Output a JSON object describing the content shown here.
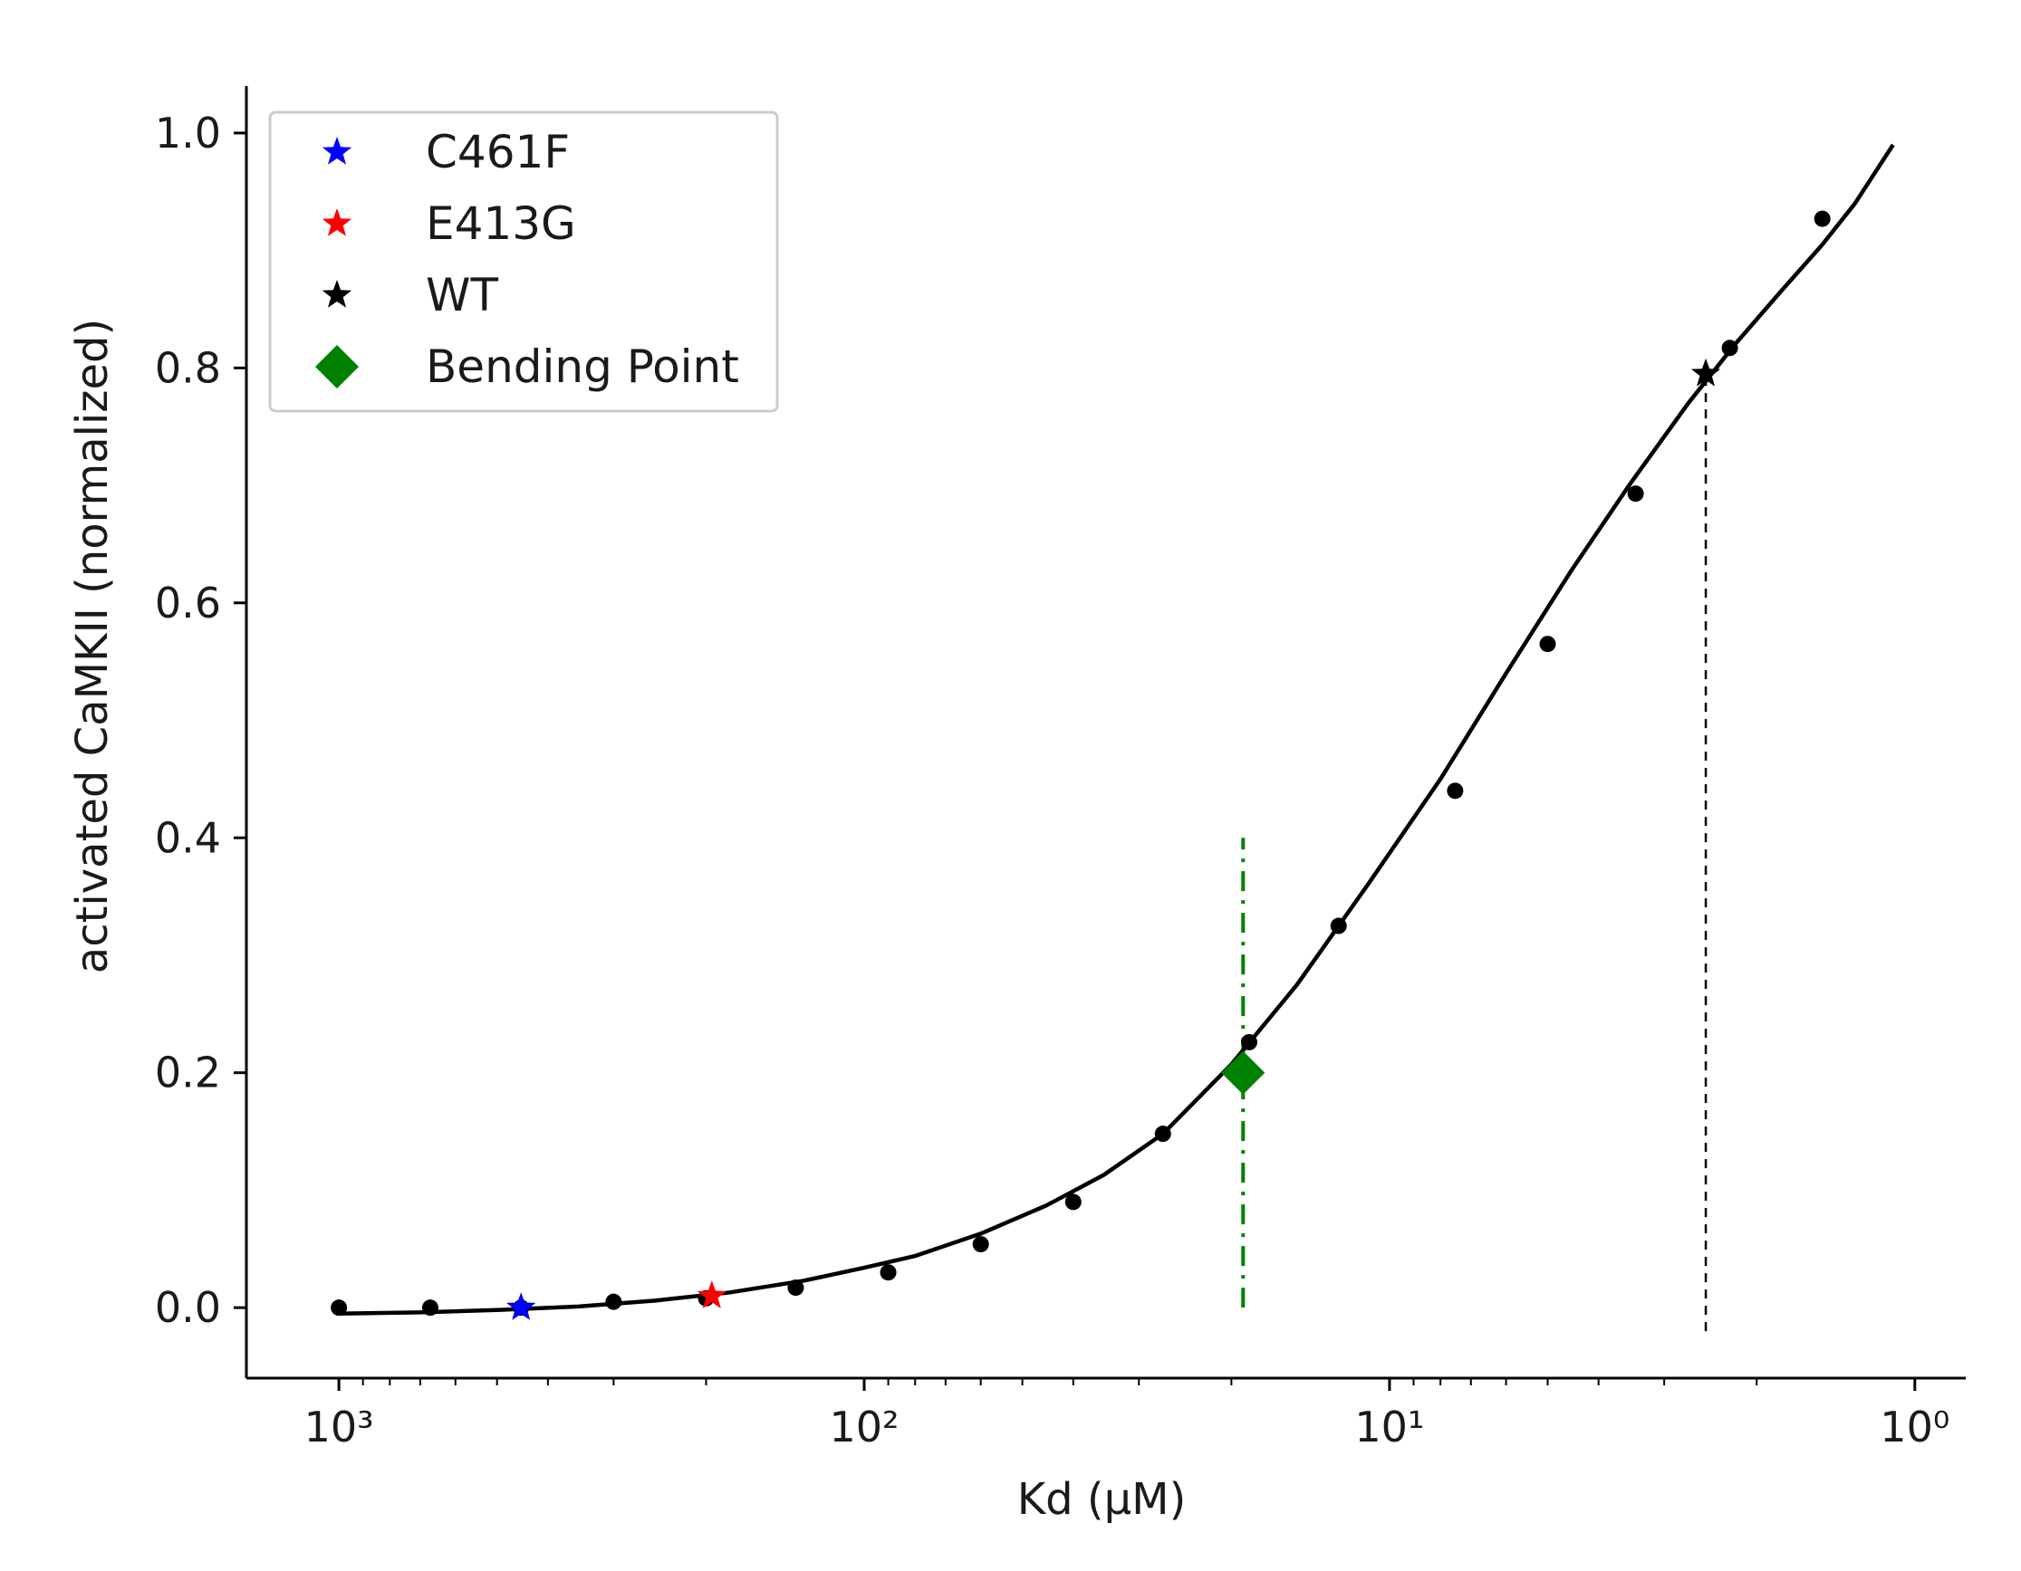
{
  "chart_data": {
    "type": "line",
    "xlabel": "Kd (μM)",
    "ylabel": "activated CaMKII (normalized)",
    "x_scale": "log",
    "x_reversed": true,
    "xlim": [
      1500,
      0.8
    ],
    "ylim": [
      -0.06,
      1.04
    ],
    "xticks": [
      {
        "value": 1000,
        "label": "10³"
      },
      {
        "value": 100,
        "label": "10²"
      },
      {
        "value": 10,
        "label": "10¹"
      },
      {
        "value": 1,
        "label": "10⁰"
      }
    ],
    "yticks": [
      {
        "value": 0.0,
        "label": "0.0"
      },
      {
        "value": 0.2,
        "label": "0.2"
      },
      {
        "value": 0.4,
        "label": "0.4"
      },
      {
        "value": 0.6,
        "label": "0.6"
      },
      {
        "value": 0.8,
        "label": "0.8"
      },
      {
        "value": 1.0,
        "label": "1.0"
      }
    ],
    "grid": false,
    "legend_position": "top-left",
    "curve": {
      "color": "#000000",
      "x": [
        1000,
        700,
        500,
        350,
        250,
        180,
        130,
        100,
        80,
        60,
        45,
        35,
        27,
        20,
        15,
        11,
        8,
        6,
        4.5,
        3.5,
        2.7,
        2.2,
        1.8,
        1.5,
        1.3,
        1.1
      ],
      "y": [
        -0.005,
        -0.004,
        -0.002,
        0.001,
        0.006,
        0.013,
        0.023,
        0.034,
        0.044,
        0.063,
        0.087,
        0.113,
        0.148,
        0.207,
        0.275,
        0.36,
        0.45,
        0.54,
        0.628,
        0.7,
        0.77,
        0.82,
        0.865,
        0.905,
        0.94,
        0.99
      ]
    },
    "points": {
      "color": "#000000",
      "x": [
        1000,
        670,
        450,
        300,
        200,
        135,
        90,
        60,
        40,
        27,
        18.5,
        12.5,
        7.5,
        5.0,
        3.4,
        2.25,
        1.5
      ],
      "y": [
        0.0,
        0.0,
        0.0,
        0.005,
        0.008,
        0.017,
        0.03,
        0.054,
        0.09,
        0.148,
        0.226,
        0.325,
        0.44,
        0.565,
        0.693,
        0.817,
        0.927
      ]
    },
    "markers": [
      {
        "name": "C461F",
        "marker": "star",
        "color": "#0000ff",
        "x": 450,
        "y": 0.0
      },
      {
        "name": "E413G",
        "marker": "star",
        "color": "#ff0000",
        "x": 195,
        "y": 0.01
      },
      {
        "name": "WT",
        "marker": "star",
        "color": "#000000",
        "x": 2.5,
        "y": 0.795
      },
      {
        "name": "Bending Point",
        "marker": "diamond",
        "color": "#008000",
        "x": 19,
        "y": 0.2
      }
    ],
    "vlines": [
      {
        "x": 19,
        "y0": 0.0,
        "y1": 0.4,
        "style": "dashdot",
        "color": "#008000"
      },
      {
        "x": 2.5,
        "y0": -0.02,
        "y1": 0.795,
        "style": "dashed",
        "color": "#000000"
      }
    ],
    "legend": [
      {
        "label": "C461F",
        "marker": "star",
        "color": "#0000ff"
      },
      {
        "label": "E413G",
        "marker": "star",
        "color": "#ff0000"
      },
      {
        "label": "WT",
        "marker": "star",
        "color": "#000000"
      },
      {
        "label": "Bending Point",
        "marker": "diamond",
        "color": "#008000"
      }
    ]
  }
}
